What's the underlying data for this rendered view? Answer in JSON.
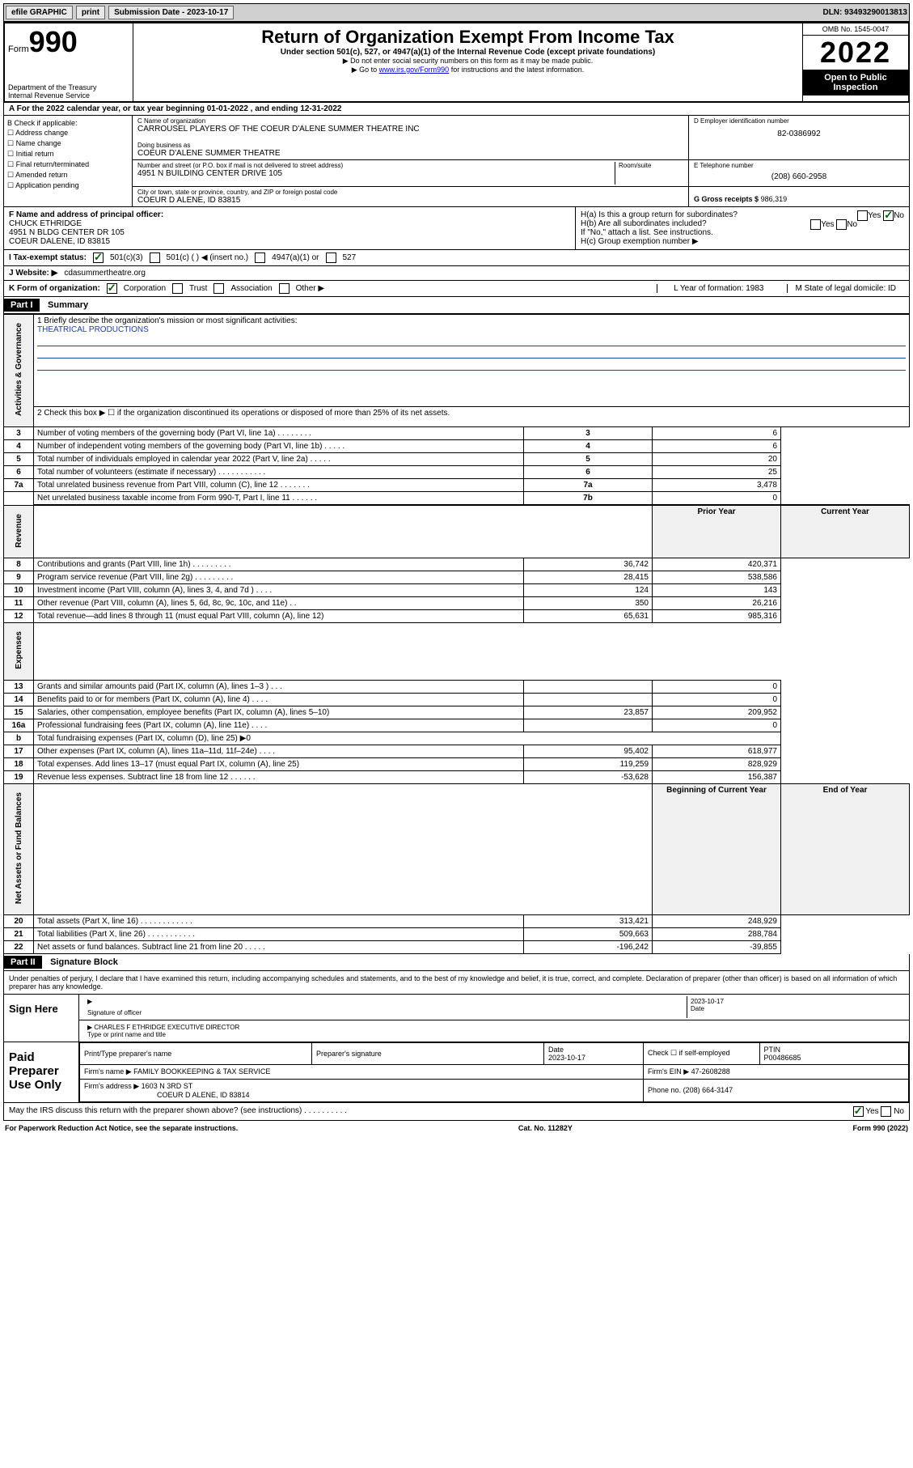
{
  "topbar": {
    "efile": "efile GRAPHIC",
    "print": "print",
    "sub_label": "Submission Date - 2023-10-17",
    "dln": "DLN: 93493290013813"
  },
  "header": {
    "form_label": "Form",
    "form_num": "990",
    "dept": "Department of the Treasury",
    "irs": "Internal Revenue Service",
    "title": "Return of Organization Exempt From Income Tax",
    "sub": "Under section 501(c), 527, or 4947(a)(1) of the Internal Revenue Code (except private foundations)",
    "note1": "▶ Do not enter social security numbers on this form as it may be made public.",
    "note2_pre": "▶ Go to ",
    "note2_link": "www.irs.gov/Form990",
    "note2_post": " for instructions and the latest information.",
    "omb": "OMB No. 1545-0047",
    "year": "2022",
    "inspect": "Open to Public Inspection"
  },
  "rowA": "A For the 2022 calendar year, or tax year beginning 01-01-2022   , and ending 12-31-2022",
  "colB": {
    "title": "B Check if applicable:",
    "items": [
      "Address change",
      "Name change",
      "Initial return",
      "Final return/terminated",
      "Amended return",
      "Application pending"
    ]
  },
  "boxC": {
    "name_lbl": "C Name of organization",
    "name": "CARROUSEL PLAYERS OF THE COEUR D'ALENE SUMMER THEATRE INC",
    "dba_lbl": "Doing business as",
    "dba": "COEUR D'ALENE SUMMER THEATRE",
    "addr_lbl": "Number and street (or P.O. box if mail is not delivered to street address)",
    "room_lbl": "Room/suite",
    "addr": "4951 N BUILDING CENTER DRIVE 105",
    "city_lbl": "City or town, state or province, country, and ZIP or foreign postal code",
    "city": "COEUR D ALENE, ID  83815"
  },
  "boxD": {
    "lbl": "D Employer identification number",
    "val": "82-0386992"
  },
  "boxE": {
    "lbl": "E Telephone number",
    "val": "(208) 660-2958"
  },
  "boxG": {
    "lbl": "G Gross receipts $",
    "val": "986,319"
  },
  "boxF": {
    "lbl": "F Name and address of principal officer:",
    "name": "CHUCK ETHRIDGE",
    "addr1": "4951 N BLDG CENTER DR 105",
    "addr2": "COEUR DALENE, ID  83815"
  },
  "boxH": {
    "a_lbl": "H(a)  Is this a group return for subordinates?",
    "yes": "Yes",
    "no": "No",
    "b_lbl": "H(b)  Are all subordinates included?",
    "b_note": "If \"No,\" attach a list. See instructions.",
    "c_lbl": "H(c)  Group exemption number ▶"
  },
  "rowI": {
    "lbl": "I   Tax-exempt status:",
    "o1": "501(c)(3)",
    "o2": "501(c) (  ) ◀ (insert no.)",
    "o3": "4947(a)(1) or",
    "o4": "527"
  },
  "rowJ": {
    "lbl": "J   Website: ▶",
    "val": "cdasummertheatre.org"
  },
  "rowK": {
    "lbl": "K Form of organization:",
    "o1": "Corporation",
    "o2": "Trust",
    "o3": "Association",
    "o4": "Other ▶",
    "L": "L Year of formation: 1983",
    "M": "M State of legal domicile: ID"
  },
  "part1": {
    "hdr": "Part I",
    "title": "Summary"
  },
  "mission": {
    "q": "1  Briefly describe the organization's mission or most significant activities:",
    "a": "THEATRICAL PRODUCTIONS"
  },
  "line2": "2   Check this box ▶ ☐  if the organization discontinued its operations or disposed of more than 25% of its net assets.",
  "govLines": [
    {
      "n": "3",
      "t": "Number of voting members of the governing body (Part VI, line 1a)  .   .   .   .   .   .   .   .",
      "rn": "3",
      "v": "6"
    },
    {
      "n": "4",
      "t": "Number of independent voting members of the governing body (Part VI, line 1b)  .   .   .   .   .",
      "rn": "4",
      "v": "6"
    },
    {
      "n": "5",
      "t": "Total number of individuals employed in calendar year 2022 (Part V, line 2a)  .   .   .   .   .",
      "rn": "5",
      "v": "20"
    },
    {
      "n": "6",
      "t": "Total number of volunteers (estimate if necessary)  .   .   .   .   .   .   .   .   .   .   .",
      "rn": "6",
      "v": "25"
    },
    {
      "n": "7a",
      "t": "Total unrelated business revenue from Part VIII, column (C), line 12  .   .   .   .   .   .   .",
      "rn": "7a",
      "v": "3,478"
    },
    {
      "n": " ",
      "t": "Net unrelated business taxable income from Form 990-T, Part I, line 11  .   .   .   .   .   .",
      "rn": "7b",
      "v": "0"
    }
  ],
  "twoColHdr": {
    "py": "Prior Year",
    "cy": "Current Year"
  },
  "revenue": [
    {
      "n": "8",
      "t": "Contributions and grants (Part VIII, line 1h)  .   .   .   .   .   .   .   .   .",
      "p": "36,742",
      "c": "420,371"
    },
    {
      "n": "9",
      "t": "Program service revenue (Part VIII, line 2g)  .   .   .   .   .   .   .   .   .",
      "p": "28,415",
      "c": "538,586"
    },
    {
      "n": "10",
      "t": "Investment income (Part VIII, column (A), lines 3, 4, and 7d )  .   .   .   .",
      "p": "124",
      "c": "143"
    },
    {
      "n": "11",
      "t": "Other revenue (Part VIII, column (A), lines 5, 6d, 8c, 9c, 10c, and 11e)  .   .",
      "p": "350",
      "c": "26,216"
    },
    {
      "n": "12",
      "t": "Total revenue—add lines 8 through 11 (must equal Part VIII, column (A), line 12)",
      "p": "65,631",
      "c": "985,316"
    }
  ],
  "expenses": [
    {
      "n": "13",
      "t": "Grants and similar amounts paid (Part IX, column (A), lines 1–3 )  .   .   .",
      "p": "",
      "c": "0"
    },
    {
      "n": "14",
      "t": "Benefits paid to or for members (Part IX, column (A), line 4)  .   .   .   .",
      "p": "",
      "c": "0"
    },
    {
      "n": "15",
      "t": "Salaries, other compensation, employee benefits (Part IX, column (A), lines 5–10)",
      "p": "23,857",
      "c": "209,952"
    },
    {
      "n": "16a",
      "t": "Professional fundraising fees (Part IX, column (A), line 11e)  .   .   .   .",
      "p": "",
      "c": "0"
    },
    {
      "n": "b",
      "t": "Total fundraising expenses (Part IX, column (D), line 25) ▶0",
      "p": null,
      "c": null
    },
    {
      "n": "17",
      "t": "Other expenses (Part IX, column (A), lines 11a–11d, 11f–24e)  .   .   .   .",
      "p": "95,402",
      "c": "618,977"
    },
    {
      "n": "18",
      "t": "Total expenses. Add lines 13–17 (must equal Part IX, column (A), line 25)",
      "p": "119,259",
      "c": "828,929"
    },
    {
      "n": "19",
      "t": "Revenue less expenses. Subtract line 18 from line 12  .   .   .   .   .   .",
      "p": "-53,628",
      "c": "156,387"
    }
  ],
  "naHdr": {
    "b": "Beginning of Current Year",
    "e": "End of Year"
  },
  "netassets": [
    {
      "n": "20",
      "t": "Total assets (Part X, line 16)  .   .   .   .   .   .   .   .   .   .   .   .",
      "p": "313,421",
      "c": "248,929"
    },
    {
      "n": "21",
      "t": "Total liabilities (Part X, line 26)  .   .   .   .   .   .   .   .   .   .   .",
      "p": "509,663",
      "c": "288,784"
    },
    {
      "n": "22",
      "t": "Net assets or fund balances. Subtract line 21 from line 20  .   .   .   .   .",
      "p": "-196,242",
      "c": "-39,855"
    }
  ],
  "vtabs": {
    "gov": "Activities & Governance",
    "rev": "Revenue",
    "exp": "Expenses",
    "na": "Net Assets or Fund Balances"
  },
  "part2": {
    "hdr": "Part II",
    "title": "Signature Block"
  },
  "sig": {
    "intro": "Under penalties of perjury, I declare that I have examined this return, including accompanying schedules and statements, and to the best of my knowledge and belief, it is true, correct, and complete. Declaration of preparer (other than officer) is based on all information of which preparer has any knowledge.",
    "sign_here": "Sign Here",
    "sig_off": "Signature of officer",
    "date_lbl": "Date",
    "date": "2023-10-17",
    "name": "CHARLES F ETHRIDGE  EXECUTIVE DIRECTOR",
    "name_lbl": "Type or print name and title",
    "paid": "Paid Preparer Use Only",
    "pt_lbl": "Print/Type preparer's name",
    "ps_lbl": "Preparer's signature",
    "pdate_lbl": "Date",
    "pdate": "2023-10-17",
    "pchk": "Check ☐ if self-employed",
    "ptin_lbl": "PTIN",
    "ptin": "P00486685",
    "firm_lbl": "Firm's name   ▶",
    "firm": "FAMILY BOOKKEEPING & TAX SERVICE",
    "ein_lbl": "Firm's EIN ▶",
    "ein": "47-2608288",
    "faddr_lbl": "Firm's address ▶",
    "faddr1": "1603 N 3RD ST",
    "faddr2": "COEUR D ALENE, ID  83814",
    "phone_lbl": "Phone no.",
    "phone": "(208) 664-3147",
    "discuss": "May the IRS discuss this return with the preparer shown above? (see instructions)  .   .   .   .   .   .   .   .   .   .",
    "yes": "Yes",
    "no": "No"
  },
  "footer": {
    "l": "For Paperwork Reduction Act Notice, see the separate instructions.",
    "m": "Cat. No. 11282Y",
    "r": "Form 990 (2022)"
  }
}
